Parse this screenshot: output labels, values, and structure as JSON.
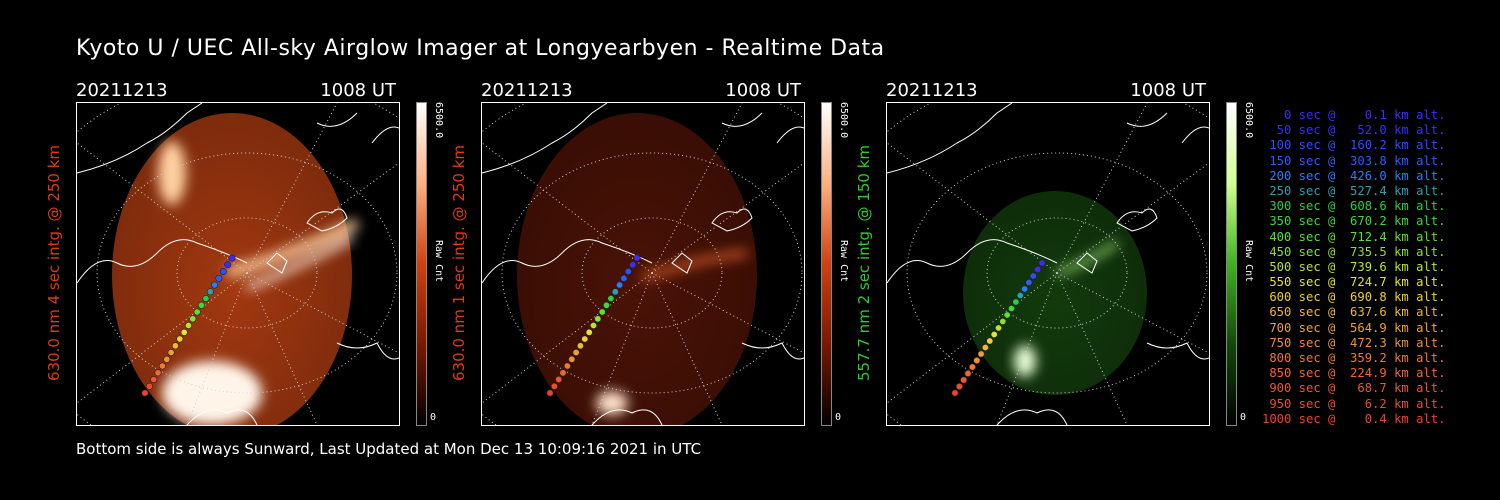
{
  "title": "Kyoto U / UEC All-sky Airglow Imager at Longyearbyen - Realtime Data",
  "footer": "Bottom side is always Sunward, Last Updated at Mon Dec 13 10:09:16 2021 in UTC",
  "panels": [
    {
      "date": "20211213",
      "time": "1008 UT",
      "ylabel": "630.0 nm 4 sec intg. @ 250 km",
      "label_color": "#e23a10",
      "cbar_max": "6500.0",
      "cbar_unit": "Raw Cnt",
      "cbar_min": "0",
      "theme": "red"
    },
    {
      "date": "20211213",
      "time": "1008 UT",
      "ylabel": "630.0 nm 1 sec intg. @ 250 km",
      "label_color": "#e23a10",
      "cbar_max": "6500.0",
      "cbar_unit": "Raw Cnt",
      "cbar_min": "0",
      "theme": "red-dim"
    },
    {
      "date": "20211213",
      "time": "1008 UT",
      "ylabel": "557.7 nm 2 sec intg. @ 150 km",
      "label_color": "#2ecc2e",
      "cbar_max": "6500.0",
      "cbar_unit": "Raw Cnt",
      "cbar_min": "0",
      "theme": "green"
    }
  ],
  "legend": [
    {
      "text": "   0 sec @    0.1 km alt.",
      "color": "#3a2cff"
    },
    {
      "text": "  50 sec @   52.0 km alt.",
      "color": "#3a2cff"
    },
    {
      "text": " 100 sec @  160.2 km alt.",
      "color": "#2f4cff"
    },
    {
      "text": " 150 sec @  303.8 km alt.",
      "color": "#2a5cff"
    },
    {
      "text": " 200 sec @  426.0 km alt.",
      "color": "#2a7cff"
    },
    {
      "text": " 250 sec @  527.4 km alt.",
      "color": "#2aa0b0"
    },
    {
      "text": " 300 sec @  608.6 km alt.",
      "color": "#2ecc40"
    },
    {
      "text": " 350 sec @  670.2 km alt.",
      "color": "#3ad83a"
    },
    {
      "text": " 400 sec @  712.4 km alt.",
      "color": "#5ce030"
    },
    {
      "text": " 450 sec @  735.5 km alt.",
      "color": "#8ce030"
    },
    {
      "text": " 500 sec @  739.6 km alt.",
      "color": "#b8e430"
    },
    {
      "text": " 550 sec @  724.7 km alt.",
      "color": "#e4e430"
    },
    {
      "text": " 600 sec @  690.8 km alt.",
      "color": "#f0d030"
    },
    {
      "text": " 650 sec @  637.6 km alt.",
      "color": "#f0b830"
    },
    {
      "text": " 700 sec @  564.9 km alt.",
      "color": "#f0a030"
    },
    {
      "text": " 750 sec @  472.3 km alt.",
      "color": "#f09030"
    },
    {
      "text": " 800 sec @  359.2 km alt.",
      "color": "#f07830"
    },
    {
      "text": " 850 sec @  224.9 km alt.",
      "color": "#f06830"
    },
    {
      "text": " 900 sec @   68.7 km alt.",
      "color": "#f05530"
    },
    {
      "text": " 950 sec @    6.2 km alt.",
      "color": "#f04a30"
    },
    {
      "text": "1000 sec @    0.4 km alt.",
      "color": "#f04030"
    }
  ]
}
